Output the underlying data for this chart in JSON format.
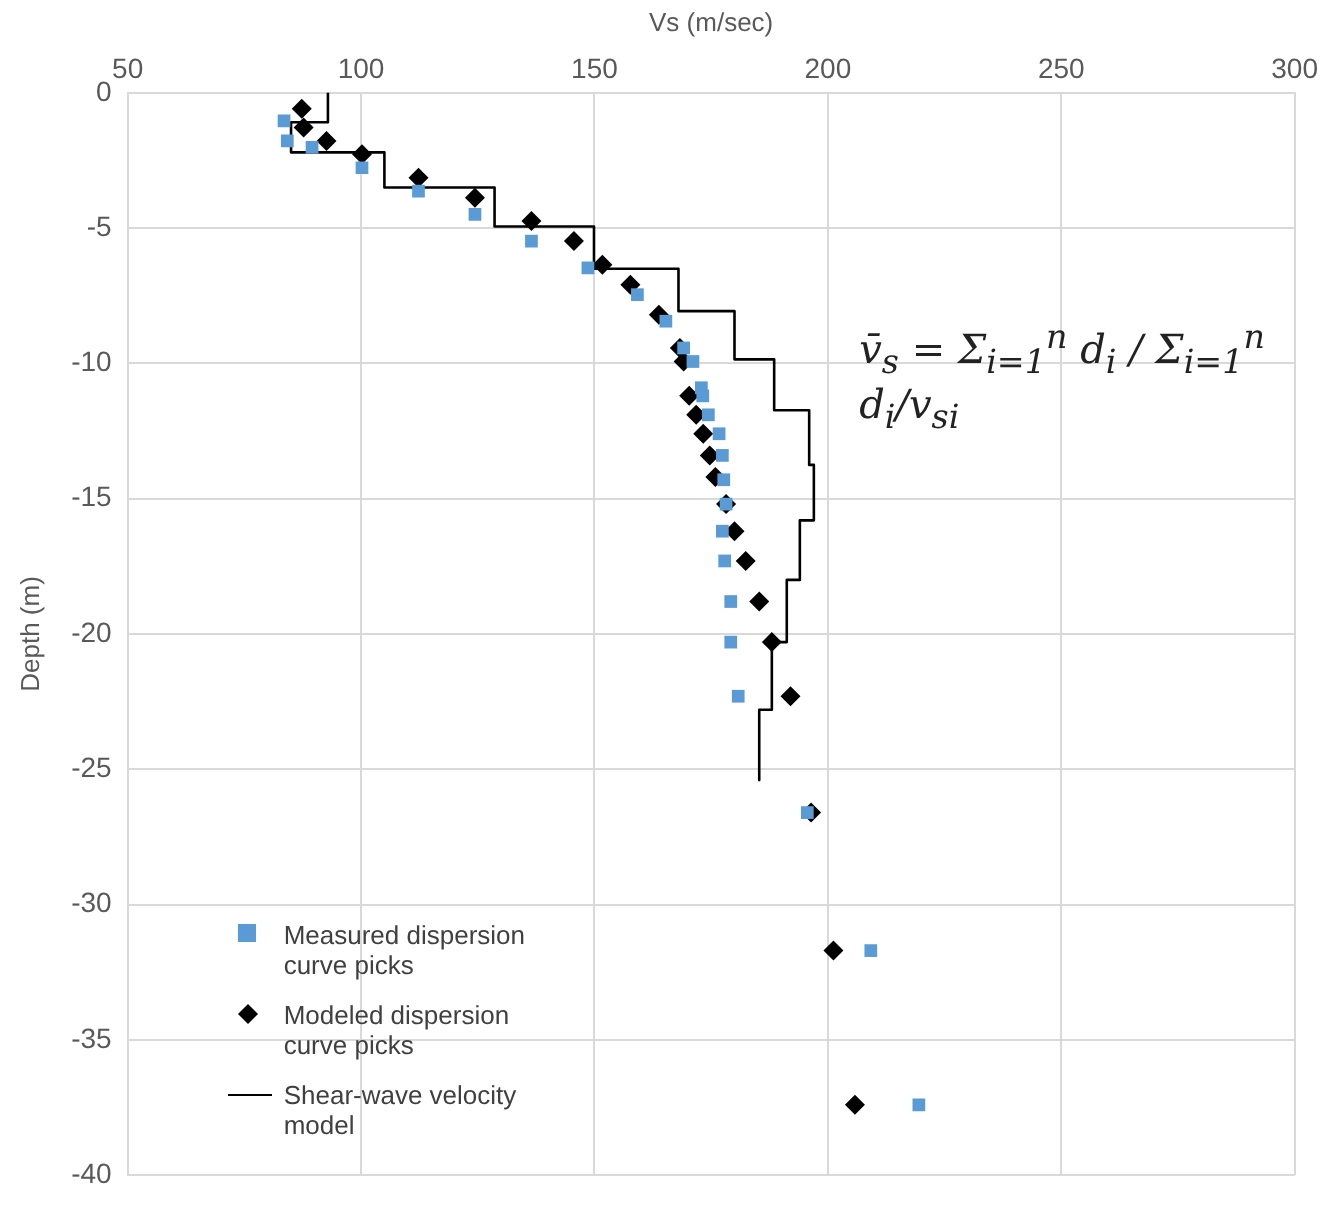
{
  "chart_data": {
    "type": "scatter",
    "xlabel": "Vs (m/sec)",
    "ylabel": "Depth (m)",
    "xlim": [
      50,
      300
    ],
    "xticks": [
      50,
      100,
      150,
      200,
      250,
      300
    ],
    "ylim": [
      -40,
      0
    ],
    "yticks": [
      0,
      -5,
      -10,
      -15,
      -20,
      -25,
      -30,
      -35,
      -40
    ],
    "grid": true,
    "legend": "bottom left",
    "annotations": [
      "v̄$_{s}$ = Σ$_{i=1}$$^{n}$ d$_{i}$ / Σ$_{i=1}$$^{n}$ d$_{i}$/v$_{si}$"
    ],
    "series": [
      {
        "name": "Measured dispersion curve picks",
        "marker": "square",
        "color": "#5b9bd5",
        "x": [
          83.5,
          84.2,
          89.5,
          100.2,
          112.3,
          124.4,
          136.5,
          148.6,
          159.2,
          165.3,
          169.1,
          171.1,
          172.9,
          173.2,
          174.4,
          176.7,
          177.4,
          177.7,
          178.2,
          177.4,
          177.9,
          179.2,
          179.2,
          180.8,
          195.6,
          209.2,
          219.5
        ],
        "values": [
          -1.04,
          -1.78,
          -2.02,
          -2.77,
          -3.63,
          -4.49,
          -5.48,
          -6.47,
          -7.46,
          -8.44,
          -9.43,
          -9.93,
          -10.9,
          -11.2,
          -11.9,
          -12.6,
          -13.4,
          -14.3,
          -15.2,
          -16.2,
          -17.3,
          -18.8,
          -20.3,
          -22.3,
          -26.6,
          -31.7,
          -37.4
        ]
      },
      {
        "name": "Modeled dispersion curve picks",
        "marker": "diamond",
        "color": "#000000",
        "x": [
          87.3,
          87.7,
          92.6,
          100.2,
          112.3,
          124.4,
          136.5,
          145.6,
          151.7,
          157.7,
          163.8,
          168.3,
          169.1,
          170.3,
          171.8,
          173.3,
          174.7,
          175.9,
          178.2,
          180,
          182.4,
          185.3,
          188,
          192,
          196.4,
          201.2,
          205.8
        ],
        "values": [
          -0.59,
          -1.28,
          -1.78,
          -2.27,
          -3.14,
          -3.88,
          -4.74,
          -5.48,
          -6.35,
          -7.09,
          -8.2,
          -9.43,
          -9.93,
          -11.2,
          -11.9,
          -12.6,
          -13.4,
          -14.2,
          -15.2,
          -16.2,
          -17.3,
          -18.8,
          -20.3,
          -22.3,
          -26.6,
          -31.7,
          -37.4
        ]
      },
      {
        "name": "Shear-wave velocity model",
        "type": "line",
        "marker": "none",
        "line_style": "solid",
        "color": "#000000",
        "x": [
          92.9,
          92.9,
          85,
          85,
          105,
          105,
          128.6,
          128.6,
          149.9,
          149.9,
          168,
          168,
          180,
          180,
          188.5,
          188.5,
          196,
          196,
          197,
          197,
          194,
          194,
          191.2,
          191.2,
          188,
          188,
          185.3,
          185.3
        ],
        "values": [
          0,
          -1.09,
          -1.09,
          -2.2,
          -2.2,
          -3.5,
          -3.5,
          -4.94,
          -4.94,
          -6.5,
          -6.5,
          -8.07,
          -8.07,
          -9.85,
          -9.85,
          -11.73,
          -11.73,
          -13.75,
          -13.75,
          -15.8,
          -15.8,
          -18,
          -18,
          -20.3,
          -20.3,
          -22.8,
          -22.8,
          -25.4
        ]
      }
    ]
  }
}
